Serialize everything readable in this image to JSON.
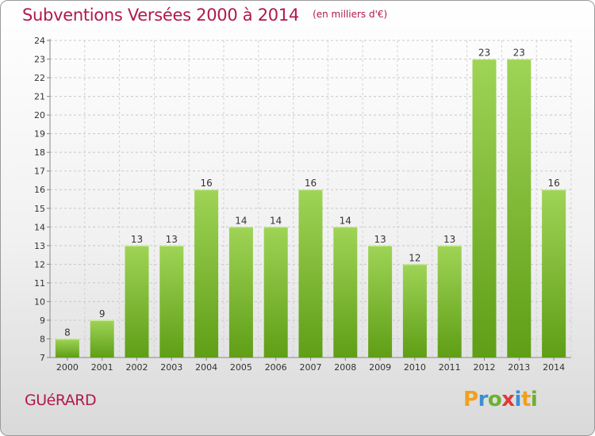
{
  "header": {
    "title": "Subventions Versées 2000 à 2014",
    "subtitle": "(en milliers d'€)"
  },
  "commune": "GUéRARD",
  "logo": {
    "text": "Proxiti",
    "letters": [
      {
        "ch": "P",
        "color": "#f0a020"
      },
      {
        "ch": "r",
        "color": "#3a8fd0"
      },
      {
        "ch": "o",
        "color": "#6cb030"
      },
      {
        "ch": "x",
        "color": "#e03a3a"
      },
      {
        "ch": "i",
        "color": "#3a8fd0"
      },
      {
        "ch": "t",
        "color": "#f0a020"
      },
      {
        "ch": "i",
        "color": "#6cb030"
      }
    ]
  },
  "chart_data": {
    "type": "bar",
    "categories": [
      "2000",
      "2001",
      "2002",
      "2003",
      "2004",
      "2005",
      "2006",
      "2007",
      "2008",
      "2009",
      "2010",
      "2011",
      "2012",
      "2013",
      "2014"
    ],
    "values": [
      8,
      9,
      13,
      13,
      16,
      14,
      14,
      16,
      14,
      13,
      12,
      13,
      23,
      23,
      16
    ],
    "ylim": [
      7,
      24
    ],
    "yticks": [
      7,
      8,
      9,
      10,
      11,
      12,
      13,
      14,
      15,
      16,
      17,
      18,
      19,
      20,
      21,
      22,
      23,
      24
    ],
    "grid": true,
    "bar_color_light": "#9fd456",
    "bar_color_dark": "#5f9e16"
  }
}
